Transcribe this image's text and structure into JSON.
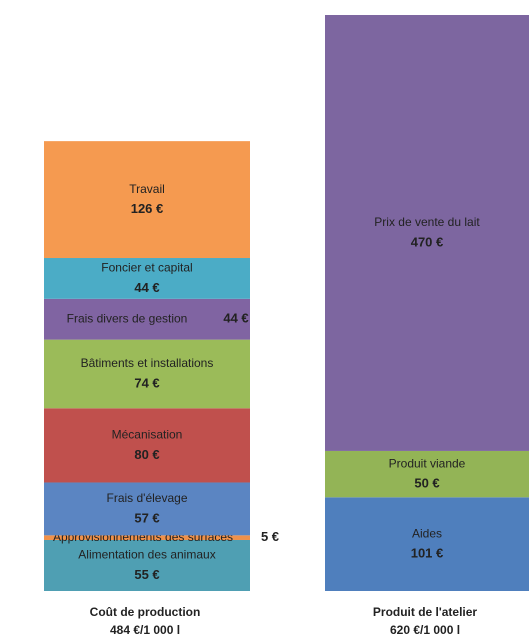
{
  "chart_data": {
    "type": "stacked_bar",
    "bars": [
      {
        "category": "Coût de production",
        "subtitle": "484 €/1 000 l",
        "segments": [
          {
            "name": "Alimentation des animaux",
            "value": 55,
            "value_label": "55 €",
            "color": "#4f9fb3"
          },
          {
            "name": "Approvisionnements des surfaces",
            "value": 5,
            "value_label": "5 €",
            "color": "#f0914a"
          },
          {
            "name": "Frais d'élevage",
            "value": 57,
            "value_label": "57 €",
            "color": "#5b85c2"
          },
          {
            "name": "Mécanisation",
            "value": 80,
            "value_label": "80 €",
            "color": "#c0504d"
          },
          {
            "name": "Bâtiments et installations",
            "value": 74,
            "value_label": "74 €",
            "color": "#9bbb59"
          },
          {
            "name": "Frais divers de gestion",
            "value": 44,
            "value_label": "44 €",
            "color": "#8064a2"
          },
          {
            "name": "Foncier et capital",
            "value": 44,
            "value_label": "44 €",
            "color": "#4bacc6"
          },
          {
            "name": "Travail",
            "value": 126,
            "value_label": "126 €",
            "color": "#f59a50"
          }
        ]
      },
      {
        "category": "Produit de l'atelier",
        "subtitle": "620 €/1 000 l",
        "segments": [
          {
            "name": "Aides",
            "value": 101,
            "value_label": "101 €",
            "color": "#4f7fbd"
          },
          {
            "name": "Produit viande",
            "value": 50,
            "value_label": "50 €",
            "color": "#93b456"
          },
          {
            "name": "Prix de vente du lait",
            "value": 470,
            "value_label": "470 €",
            "color": "#7d66a0"
          }
        ]
      }
    ]
  }
}
